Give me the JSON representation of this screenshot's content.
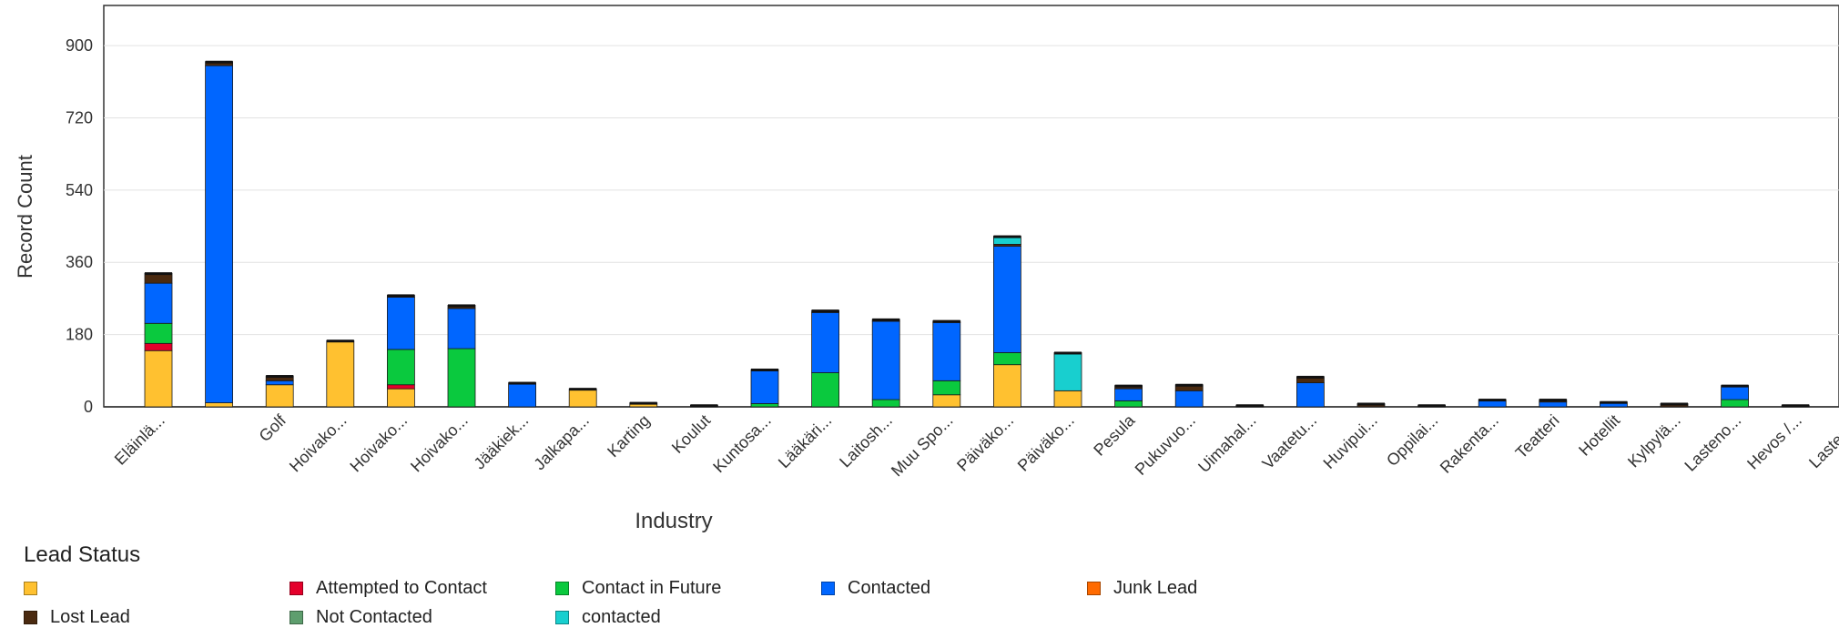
{
  "chart_data": {
    "type": "bar",
    "stacked": true,
    "xlabel": "Industry",
    "ylabel": "Record Count",
    "ylim": [
      0,
      1000
    ],
    "yticks": [
      0,
      180,
      360,
      540,
      720,
      900
    ],
    "grid": true,
    "legend_title": "Lead Status",
    "legend_position": "bottom",
    "categories": [
      "Eläinlä...",
      "",
      "Golf",
      "Hoivako...",
      "Hoivako...",
      "Hoivako...",
      "Jääkiek...",
      "Jalkapa...",
      "Karting",
      "Koulut",
      "Kuntosa...",
      "Lääkäri...",
      "Laitosh...",
      "Muu Spo...",
      "Päiväko...",
      "Päiväko...",
      "Pesula",
      "Pukuvuo...",
      "Uimahal...",
      "Vaatetu...",
      "Huvipui...",
      "Oppilai...",
      "Rakenta...",
      "Teatteri",
      "Hotellit",
      "Kylpylä...",
      "Lasteno...",
      "Hevos /...",
      "Lasten ..."
    ],
    "series": [
      {
        "name": "",
        "color": "#FFC130",
        "values": [
          140,
          10,
          55,
          165,
          45,
          0,
          0,
          45,
          10,
          0,
          0,
          0,
          0,
          30,
          105,
          40,
          0,
          0,
          0,
          0,
          0,
          0,
          0,
          0,
          0,
          0,
          0,
          0,
          0
        ]
      },
      {
        "name": "Attempted to Contact",
        "color": "#E4002B",
        "values": [
          18,
          0,
          0,
          0,
          10,
          0,
          0,
          0,
          0,
          0,
          0,
          0,
          0,
          0,
          0,
          0,
          0,
          0,
          0,
          0,
          0,
          0,
          0,
          0,
          0,
          0,
          0,
          0,
          0
        ]
      },
      {
        "name": "Contact in Future",
        "color": "#0AC93E",
        "values": [
          50,
          0,
          0,
          0,
          88,
          145,
          0,
          0,
          0,
          0,
          8,
          85,
          18,
          35,
          30,
          0,
          15,
          0,
          0,
          0,
          0,
          0,
          0,
          0,
          0,
          0,
          18,
          0,
          0
        ]
      },
      {
        "name": "Contacted",
        "color": "#0066FF",
        "values": [
          100,
          840,
          10,
          0,
          130,
          100,
          60,
          0,
          0,
          0,
          85,
          150,
          195,
          145,
          265,
          0,
          30,
          40,
          0,
          60,
          0,
          0,
          18,
          12,
          12,
          0,
          35,
          0,
          0
        ]
      },
      {
        "name": "Junk Lead",
        "color": "#FF6A00",
        "values": [
          0,
          0,
          0,
          0,
          0,
          0,
          0,
          0,
          0,
          0,
          0,
          0,
          0,
          0,
          0,
          0,
          0,
          0,
          0,
          0,
          0,
          0,
          0,
          0,
          0,
          0,
          0,
          0,
          0
        ]
      },
      {
        "name": "Lost Lead",
        "color": "#4A2A10",
        "values": [
          25,
          10,
          12,
          0,
          5,
          8,
          0,
          0,
          0,
          4,
          0,
          5,
          5,
          4,
          5,
          0,
          8,
          15,
          4,
          15,
          8,
          4,
          0,
          6,
          0,
          8,
          0,
          4,
          4
        ]
      },
      {
        "name": "Not Contacted",
        "color": "#5E9E6E",
        "values": [
          0,
          0,
          0,
          0,
          0,
          0,
          0,
          0,
          0,
          0,
          0,
          0,
          0,
          0,
          0,
          0,
          0,
          0,
          0,
          0,
          0,
          0,
          0,
          0,
          0,
          0,
          0,
          0,
          0
        ]
      },
      {
        "name": "contacted",
        "color": "#18CFCF",
        "values": [
          0,
          0,
          0,
          0,
          0,
          0,
          0,
          0,
          0,
          0,
          0,
          0,
          0,
          0,
          20,
          95,
          0,
          0,
          0,
          0,
          0,
          0,
          0,
          0,
          0,
          0,
          0,
          0,
          0
        ]
      }
    ]
  }
}
